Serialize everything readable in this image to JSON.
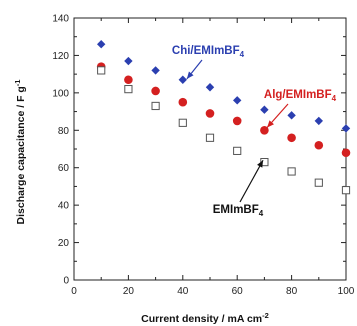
{
  "chart_data": {
    "type": "scatter",
    "xlabel": "Current density  /  mA cm",
    "xlabel_sup": "-2",
    "ylabel": "Discharge capacitance  /  F g",
    "ylabel_sup": "-1",
    "xlim": [
      0,
      100
    ],
    "ylim": [
      0,
      140
    ],
    "x_ticks": [
      0,
      20,
      40,
      60,
      80,
      100
    ],
    "y_ticks": [
      0,
      20,
      40,
      60,
      80,
      100,
      120,
      140
    ],
    "x_tick_labels": [
      "0",
      "20",
      "40",
      "60",
      "80",
      "100"
    ],
    "y_tick_labels": [
      "0",
      "20",
      "40",
      "60",
      "80",
      "100",
      "120",
      "140"
    ],
    "grid": false,
    "series": [
      {
        "name": "Chi/EMImBF",
        "name_sub": "4",
        "marker": "diamond",
        "color": "#2b3fb0",
        "x": [
          10,
          20,
          30,
          40,
          50,
          60,
          70,
          80,
          90,
          100
        ],
        "values": [
          126,
          117,
          112,
          107,
          103,
          96,
          91,
          88,
          85,
          81
        ]
      },
      {
        "name": "Alg/EMImBF",
        "name_sub": "4",
        "marker": "circle",
        "color": "#d42020",
        "x": [
          10,
          20,
          30,
          40,
          50,
          60,
          70,
          80,
          90,
          100
        ],
        "values": [
          114,
          107,
          101,
          95,
          89,
          85,
          80,
          76,
          72,
          68
        ]
      },
      {
        "name": "EMImBF",
        "name_sub": "4",
        "marker": "square-open",
        "color": "#555555",
        "x": [
          10,
          20,
          30,
          40,
          50,
          60,
          70,
          80,
          90,
          100
        ],
        "values": [
          112,
          102,
          93,
          84,
          76,
          69,
          63,
          58,
          52,
          48
        ]
      }
    ],
    "annotations": [
      {
        "series_index": 0,
        "text_color": "#2b3fb0"
      },
      {
        "series_index": 1,
        "text_color": "#d42020"
      },
      {
        "series_index": 2,
        "text_color": "#111111"
      }
    ]
  }
}
